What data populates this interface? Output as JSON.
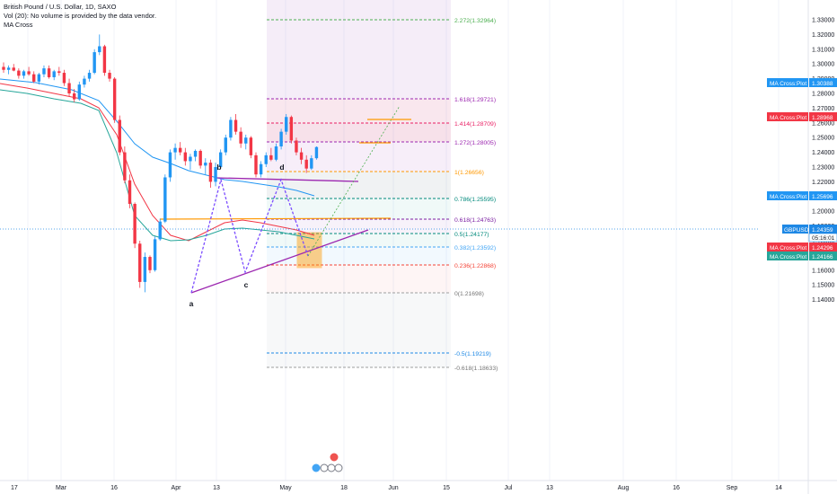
{
  "legend": {
    "symbol": "British Pound / U.S. Dollar, 1D, SAXO",
    "volume": "Vol (20): No volume is provided by the data vendor.",
    "indicator": "MA Cross"
  },
  "price_axis": {
    "ticks": [
      "1.33000",
      "1.32000",
      "1.31000",
      "1.30000",
      "1.29000",
      "1.28000",
      "1.27000",
      "1.26000",
      "1.25000",
      "1.24000",
      "1.23000",
      "1.22000",
      "1.21000",
      "1.20000",
      "1.19000",
      "1.18000",
      "1.17000",
      "1.16000",
      "1.15000",
      "1.14000"
    ],
    "labels": [
      {
        "text": "MA Cross:Plot",
        "value": "1.30388",
        "color": "#2196f3"
      },
      {
        "text": "MA Cross:Plot",
        "value": "1.28968",
        "color": "#f23645"
      },
      {
        "text": "MA Cross:Plot",
        "value": "1.25696",
        "color": "#2196f3"
      },
      {
        "text": "GBPUSD",
        "value": "1.24359",
        "color": "#1e88e5"
      },
      {
        "text": "",
        "value": "05:16:01",
        "color": "#ffffff"
      },
      {
        "text": "MA Cross:Plot",
        "value": "1.24296",
        "color": "#f23645"
      },
      {
        "text": "MA Cross:Plot",
        "value": "1.24166",
        "color": "#26a69a"
      }
    ]
  },
  "time_axis": [
    "17",
    "Mar",
    "16",
    "Apr",
    "13",
    "May",
    "18",
    "Jun",
    "15",
    "Jul",
    "13",
    "Aug",
    "16",
    "Sep",
    "14"
  ],
  "fib_levels": [
    {
      "label": "2.272(1.32964)",
      "color": "#4caf50"
    },
    {
      "label": "1.618(1.29721)",
      "color": "#9c27b0"
    },
    {
      "label": "1.414(1.28709)",
      "color": "#e91e63"
    },
    {
      "label": "1.272(1.28005)",
      "color": "#9c27b0"
    },
    {
      "label": "1(1.26656)",
      "color": "#ff9800"
    },
    {
      "label": "0.786(1.25595)",
      "color": "#00897b"
    },
    {
      "label": "0.618(1.24763)",
      "color": "#7b1fa2"
    },
    {
      "label": "0.5(1.24177)",
      "color": "#00897b"
    },
    {
      "label": "0.382(1.23592)",
      "color": "#42a5f5"
    },
    {
      "label": "0.236(1.22868)",
      "color": "#f44336"
    },
    {
      "label": "0(1.21698)",
      "color": "#757575"
    },
    {
      "label": "-0.5(1.19219)",
      "color": "#1e88e5"
    },
    {
      "label": "-0.618(1.18633)",
      "color": "#757575"
    }
  ],
  "wave_labels": [
    "a",
    "b",
    "c",
    "d"
  ],
  "chart_data": {
    "type": "candlestick",
    "symbol": "GBPUSD",
    "timeframe": "1D",
    "last_price": 1.24359,
    "ylim": [
      1.14,
      1.335
    ],
    "moving_averages": [
      {
        "value": 1.30388,
        "color": "#2196f3"
      },
      {
        "value": 1.28968,
        "color": "#f23645"
      },
      {
        "value": 1.25696,
        "color": "#2196f3"
      },
      {
        "value": 1.24296,
        "color": "#f23645"
      },
      {
        "value": 1.24166,
        "color": "#26a69a"
      }
    ],
    "fibonacci_extension": [
      {
        "ratio": 2.272,
        "price": 1.32964
      },
      {
        "ratio": 1.618,
        "price": 1.29721
      },
      {
        "ratio": 1.414,
        "price": 1.28709
      },
      {
        "ratio": 1.272,
        "price": 1.28005
      },
      {
        "ratio": 1,
        "price": 1.26656
      },
      {
        "ratio": 0.786,
        "price": 1.25595
      },
      {
        "ratio": 0.618,
        "price": 1.24763
      },
      {
        "ratio": 0.5,
        "price": 1.24177
      },
      {
        "ratio": 0.382,
        "price": 1.23592
      },
      {
        "ratio": 0.236,
        "price": 1.22868
      },
      {
        "ratio": 0,
        "price": 1.21698
      },
      {
        "ratio": -0.5,
        "price": 1.19219
      },
      {
        "ratio": -0.618,
        "price": 1.18633
      }
    ],
    "candles": [
      [
        1.298,
        1.301,
        1.294,
        1.296
      ],
      [
        1.296,
        1.299,
        1.293,
        1.2975
      ],
      [
        1.2975,
        1.3,
        1.295,
        1.2955
      ],
      [
        1.2955,
        1.297,
        1.29,
        1.292
      ],
      [
        1.292,
        1.296,
        1.29,
        1.295
      ],
      [
        1.295,
        1.298,
        1.292,
        1.293
      ],
      [
        1.293,
        1.295,
        1.287,
        1.288
      ],
      [
        1.288,
        1.294,
        1.286,
        1.293
      ],
      [
        1.293,
        1.299,
        1.291,
        1.297
      ],
      [
        1.297,
        1.299,
        1.29,
        1.291
      ],
      [
        1.291,
        1.296,
        1.289,
        1.295
      ],
      [
        1.295,
        1.298,
        1.292,
        1.294
      ],
      [
        1.294,
        1.296,
        1.285,
        1.287
      ],
      [
        1.287,
        1.29,
        1.278,
        1.28
      ],
      [
        1.28,
        1.283,
        1.274,
        1.276
      ],
      [
        1.276,
        1.288,
        1.275,
        1.286
      ],
      [
        1.286,
        1.292,
        1.284,
        1.29
      ],
      [
        1.29,
        1.296,
        1.288,
        1.294
      ],
      [
        1.294,
        1.31,
        1.293,
        1.308
      ],
      [
        1.308,
        1.32,
        1.306,
        1.312
      ],
      [
        1.312,
        1.313,
        1.292,
        1.294
      ],
      [
        1.294,
        1.296,
        1.288,
        1.29
      ],
      [
        1.29,
        1.291,
        1.26,
        1.262
      ],
      [
        1.262,
        1.265,
        1.238,
        1.24
      ],
      [
        1.24,
        1.244,
        1.219,
        1.221
      ],
      [
        1.221,
        1.225,
        1.202,
        1.205
      ],
      [
        1.205,
        1.206,
        1.175,
        1.178
      ],
      [
        1.178,
        1.18,
        1.148,
        1.152
      ],
      [
        1.152,
        1.172,
        1.145,
        1.169
      ],
      [
        1.169,
        1.17,
        1.158,
        1.16
      ],
      [
        1.16,
        1.183,
        1.159,
        1.181
      ],
      [
        1.181,
        1.195,
        1.18,
        1.193
      ],
      [
        1.193,
        1.225,
        1.192,
        1.223
      ],
      [
        1.223,
        1.242,
        1.22,
        1.24
      ],
      [
        1.24,
        1.246,
        1.235,
        1.243
      ],
      [
        1.243,
        1.247,
        1.238,
        1.24
      ],
      [
        1.24,
        1.243,
        1.231,
        1.234
      ],
      [
        1.234,
        1.239,
        1.228,
        1.237
      ],
      [
        1.237,
        1.242,
        1.234,
        1.241
      ],
      [
        1.241,
        1.242,
        1.229,
        1.231
      ],
      [
        1.231,
        1.236,
        1.225,
        1.233
      ],
      [
        1.233,
        1.235,
        1.216,
        1.22
      ],
      [
        1.22,
        1.233,
        1.217,
        1.23
      ],
      [
        1.23,
        1.242,
        1.229,
        1.24
      ],
      [
        1.24,
        1.252,
        1.238,
        1.25
      ],
      [
        1.25,
        1.264,
        1.248,
        1.262
      ],
      [
        1.262,
        1.266,
        1.252,
        1.254
      ],
      [
        1.254,
        1.257,
        1.243,
        1.246
      ],
      [
        1.246,
        1.252,
        1.242,
        1.25
      ],
      [
        1.25,
        1.251,
        1.236,
        1.238
      ],
      [
        1.238,
        1.24,
        1.223,
        1.225
      ],
      [
        1.225,
        1.234,
        1.223,
        1.232
      ],
      [
        1.232,
        1.24,
        1.23,
        1.238
      ],
      [
        1.238,
        1.243,
        1.234,
        1.235
      ],
      [
        1.235,
        1.246,
        1.234,
        1.244
      ],
      [
        1.244,
        1.256,
        1.242,
        1.254
      ],
      [
        1.254,
        1.266,
        1.252,
        1.264
      ],
      [
        1.264,
        1.265,
        1.246,
        1.248
      ],
      [
        1.248,
        1.25,
        1.238,
        1.24
      ],
      [
        1.24,
        1.243,
        1.232,
        1.235
      ],
      [
        1.235,
        1.238,
        1.226,
        1.229
      ],
      [
        1.229,
        1.238,
        1.228,
        1.236
      ],
      [
        1.236,
        1.244,
        1.235,
        1.2436
      ]
    ]
  }
}
